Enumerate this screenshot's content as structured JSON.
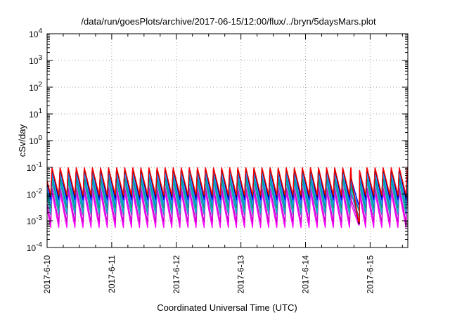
{
  "chart_data": {
    "type": "line",
    "title": "/data/run/goesPlots/archive/2017-06-15/12:00/flux/../bryn/5daysMars.plot",
    "xlabel": "Coordinated Universal Time (UTC)",
    "ylabel": "cSv/day",
    "x_tick_labels": [
      "2017-6-10",
      "2017-6-11",
      "2017-6-12",
      "2017-6-13",
      "2017-6-14",
      "2017-6-15"
    ],
    "xlim": [
      "2017-06-10T00:00",
      "2017-06-15T14:00"
    ],
    "y_scale": "log",
    "ylim": [
      0.0001,
      10000
    ],
    "y_ticks": [
      {
        "value": 0.0001,
        "base": "10",
        "exp": "-4"
      },
      {
        "value": 0.001,
        "base": "10",
        "exp": "-3"
      },
      {
        "value": 0.01,
        "base": "10",
        "exp": "-2"
      },
      {
        "value": 0.1,
        "base": "10",
        "exp": "-1"
      },
      {
        "value": 1,
        "base": "10",
        "exp": "0"
      },
      {
        "value": 10,
        "base": "10",
        "exp": "1"
      },
      {
        "value": 100,
        "base": "10",
        "exp": "2"
      },
      {
        "value": 1000,
        "base": "10",
        "exp": "3"
      },
      {
        "value": 10000,
        "base": "10",
        "exp": "4"
      }
    ],
    "grid": true,
    "legend": "none",
    "cycle_hours": 3,
    "dip_start": "2017-06-14T17:00",
    "dip_end": "2017-06-14T20:00",
    "series": [
      {
        "color": "#ff00ff",
        "peak": 0.012,
        "trough": 0.00055,
        "dip": 0.0007
      },
      {
        "color": "#cc00cc",
        "peak": 0.018,
        "trough": 0.00085,
        "dip": 0.0009
      },
      {
        "color": "#6a5acd",
        "peak": 0.03,
        "trough": 0.0016,
        "dip": 0.0011
      },
      {
        "color": "#00bfbf",
        "peak": 0.035,
        "trough": 0.002,
        "dip": 0.0015
      },
      {
        "color": "#009e73",
        "peak": 0.045,
        "trough": 0.003,
        "dip": 0.0025
      },
      {
        "color": "#1e90ff",
        "peak": 0.06,
        "trough": 0.004,
        "dip": 0.003
      },
      {
        "color": "#0000ff",
        "peak": 0.095,
        "trough": 0.006,
        "dip": 0.004
      },
      {
        "color": "#000000",
        "peak": 0.09,
        "trough": 0.008,
        "dip": 0.0008
      },
      {
        "color": "#ff0000",
        "peak": 0.1,
        "trough": 0.009,
        "dip": 0.0009
      }
    ]
  }
}
